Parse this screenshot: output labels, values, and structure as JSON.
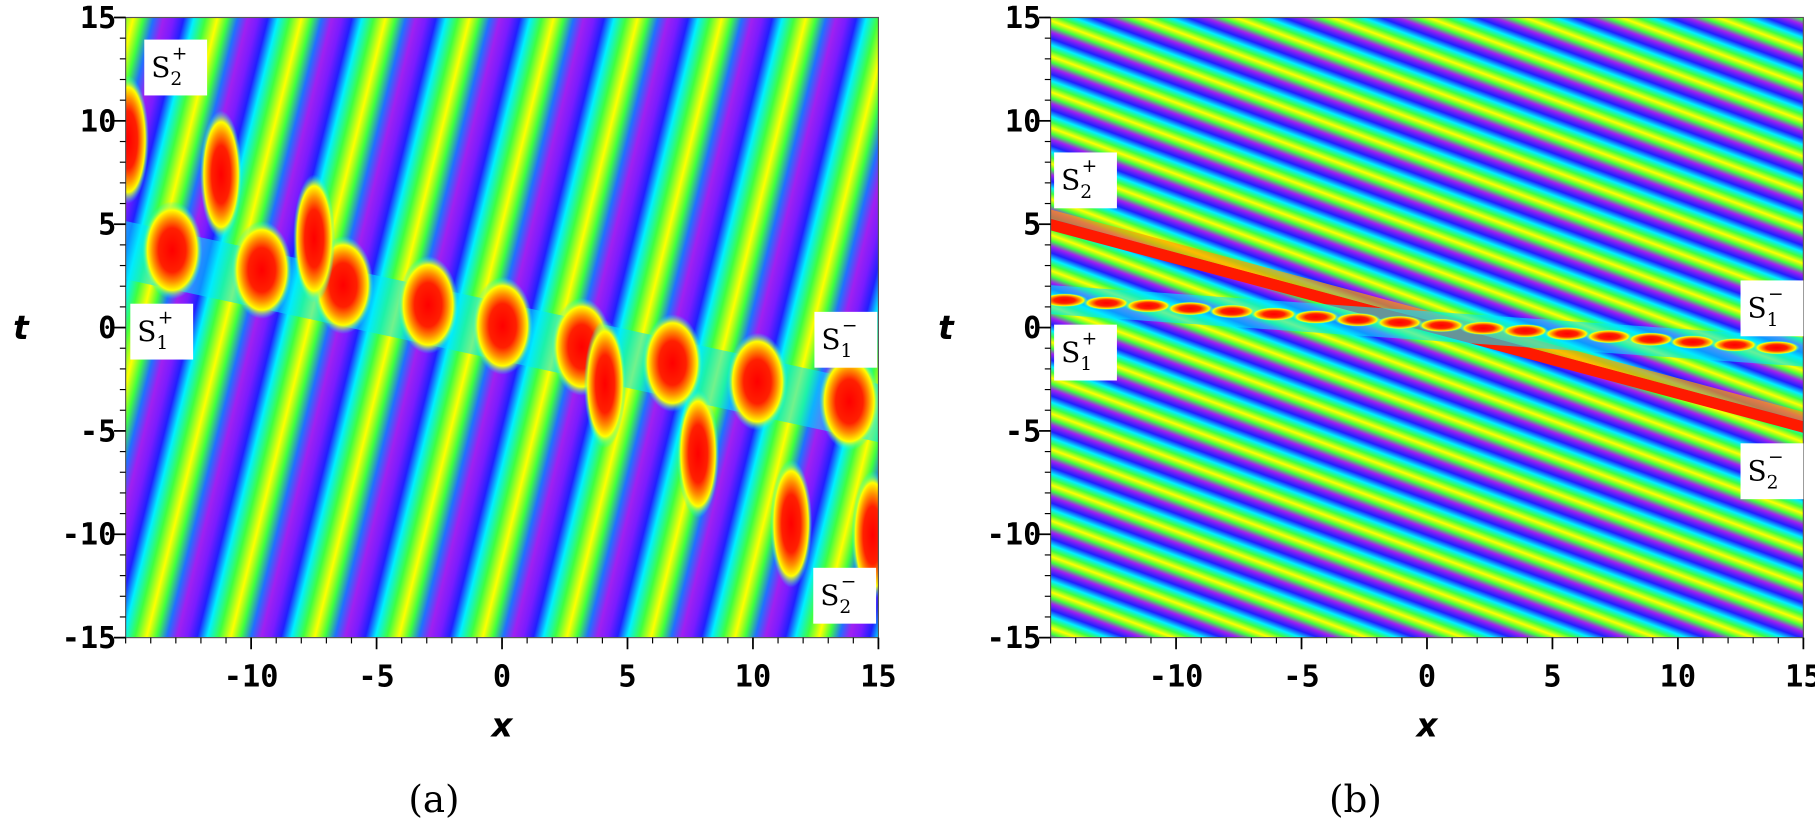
{
  "chart_data": [
    {
      "type": "heatmap",
      "xlabel": "x",
      "ylabel": "t",
      "caption": "(a)",
      "xlim": [
        -15,
        15
      ],
      "ylim": [
        -15,
        15
      ],
      "xticks": [
        -10,
        -5,
        0,
        5,
        10,
        15
      ],
      "yticks": [
        -15,
        -10,
        -5,
        0,
        5,
        10,
        15
      ],
      "annotations": [
        {
          "text": "S",
          "sub": "2",
          "sup": "+"
        },
        {
          "text": "S",
          "sub": "1",
          "sup": "+"
        },
        {
          "text": "S",
          "sub": "1",
          "sup": "−"
        },
        {
          "text": "S",
          "sub": "2",
          "sup": "−"
        }
      ]
    },
    {
      "type": "heatmap",
      "xlabel": "x",
      "ylabel": "t",
      "caption": "(b)",
      "xlim": [
        -15,
        15
      ],
      "ylim": [
        -15,
        15
      ],
      "xticks": [
        -10,
        -5,
        0,
        5,
        10,
        15
      ],
      "yticks": [
        -15,
        -10,
        -5,
        0,
        5,
        10,
        15
      ],
      "annotations": [
        {
          "text": "S",
          "sub": "2",
          "sup": "+"
        },
        {
          "text": "S",
          "sub": "1",
          "sup": "+"
        },
        {
          "text": "S",
          "sub": "1",
          "sup": "−"
        },
        {
          "text": "S",
          "sub": "2",
          "sup": "−"
        }
      ]
    }
  ]
}
